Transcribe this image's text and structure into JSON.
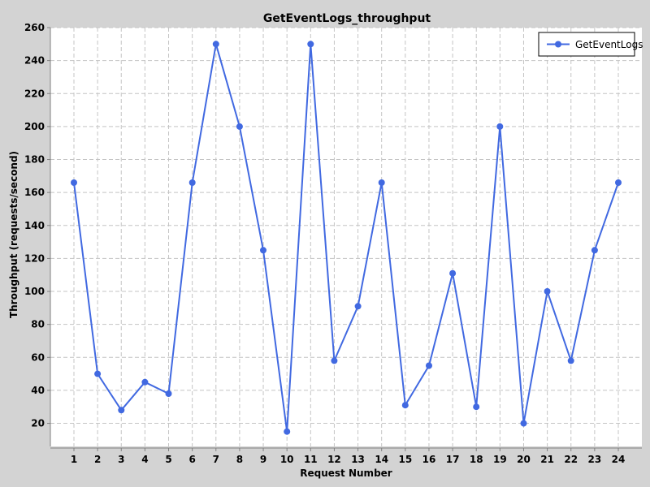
{
  "chart_data": {
    "type": "line",
    "title": "GetEventLogs_throughput",
    "xlabel": "Request Number",
    "ylabel": "Throughput (requests/second)",
    "x": [
      1,
      2,
      3,
      4,
      5,
      6,
      7,
      8,
      9,
      10,
      11,
      12,
      13,
      14,
      15,
      16,
      17,
      18,
      19,
      20,
      21,
      22,
      23,
      24
    ],
    "xlim": [
      0,
      25
    ],
    "ylim": [
      6,
      260
    ],
    "yticks": [
      20,
      40,
      60,
      80,
      100,
      120,
      140,
      160,
      180,
      200,
      220,
      240,
      260
    ],
    "grid": true,
    "legend_position": "top-right",
    "series": [
      {
        "name": "GetEventLogs",
        "color": "#4169e1",
        "values": [
          166,
          50,
          28,
          45,
          38,
          166,
          250,
          200,
          125,
          15,
          250,
          58,
          91,
          166,
          31,
          55,
          111,
          30,
          200,
          20,
          100,
          58,
          125,
          166
        ]
      }
    ]
  }
}
